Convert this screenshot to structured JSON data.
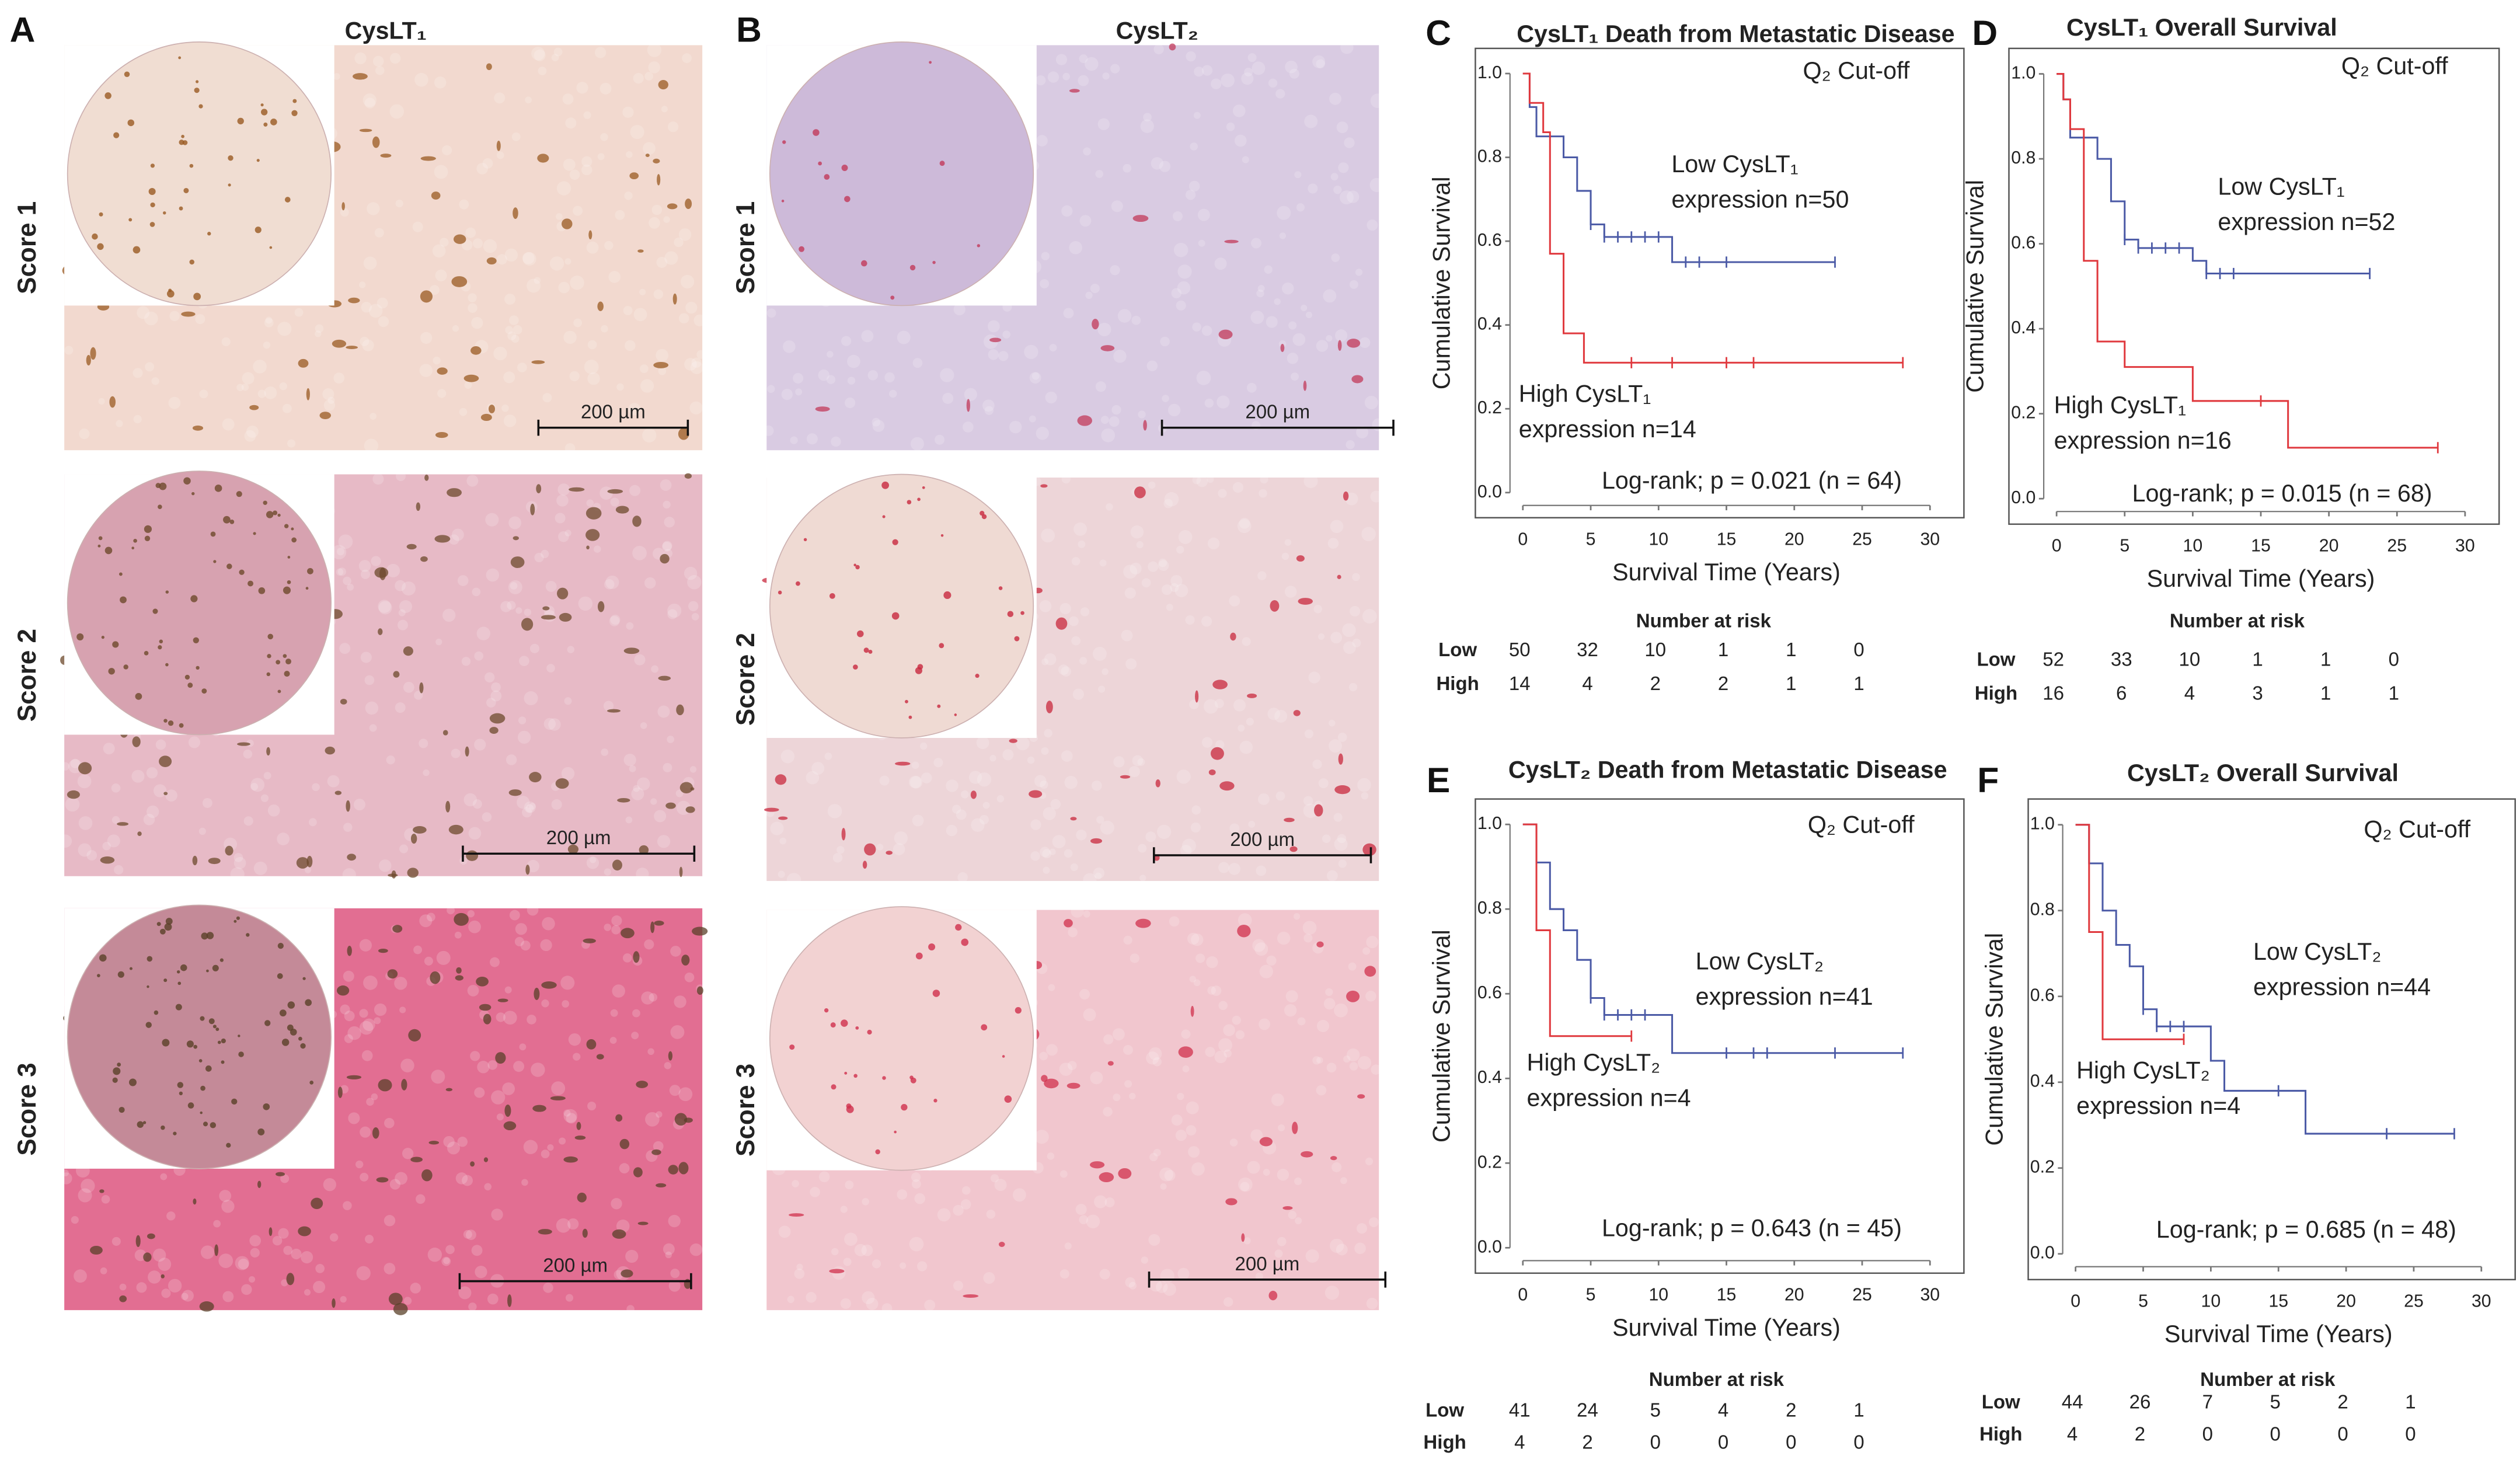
{
  "panels": {
    "A": {
      "label": "A",
      "title": "CysLT₁",
      "rows": [
        "Score 1",
        "Score 2",
        "Score 3"
      ],
      "scale_bar": "200 µm"
    },
    "B": {
      "label": "B",
      "title": "CysLT₂",
      "rows": [
        "Score 1",
        "Score 2",
        "Score 3"
      ],
      "scale_bar": "200 µm"
    }
  },
  "chart_data": [
    {
      "type": "line",
      "step": true,
      "panel_label": "C",
      "title": "CysLT₁ Death from Metastatic Disease",
      "xlabel": "Survival Time (Years)",
      "ylabel": "Cumulative Survival",
      "xlim": [
        -3.5,
        32.5
      ],
      "ylim": [
        -0.06,
        1.06
      ],
      "xticks": [
        0,
        5,
        10,
        15,
        20,
        25,
        30
      ],
      "yticks": [
        {
          "value": 0,
          "label": "0.0"
        },
        0.2,
        0.4,
        0.6,
        0.8,
        {
          "value": 1,
          "label": "1.0"
        }
      ],
      "annotations": {
        "cutoff": "Q₂ Cut-off",
        "low": [
          "Low CysLT₁",
          "expression n=50"
        ],
        "high": [
          "High CysLT₁",
          "expression n=14"
        ],
        "logrank": "Log-rank; p = 0.021 (n = 64)"
      },
      "risk_title": "Number at risk",
      "series": [
        {
          "name": "Low",
          "color": "#4b5aa6",
          "x": [
            0,
            0.5,
            1,
            3,
            4,
            5,
            6,
            11,
            23
          ],
          "values": [
            1,
            0.92,
            0.85,
            0.8,
            0.72,
            0.64,
            0.61,
            0.55,
            0.55
          ],
          "censored": {
            "x": [
              5,
              6,
              7,
              8,
              9,
              10,
              12,
              13,
              15,
              23
            ],
            "values": [
              0.64,
              0.61,
              0.61,
              0.61,
              0.61,
              0.61,
              0.55,
              0.55,
              0.55,
              0.55
            ]
          },
          "at_risk": [
            50,
            32,
            10,
            1,
            1,
            0
          ]
        },
        {
          "name": "High",
          "color": "#e0393e",
          "x": [
            0,
            0.5,
            1.5,
            2,
            3,
            4.5,
            28
          ],
          "values": [
            1,
            0.93,
            0.86,
            0.57,
            0.38,
            0.31,
            0.31
          ],
          "censored": {
            "x": [
              8,
              11,
              15,
              17,
              28
            ],
            "values": [
              0.31,
              0.31,
              0.31,
              0.31,
              0.31
            ]
          },
          "at_risk": [
            14,
            4,
            2,
            2,
            1,
            1
          ]
        }
      ]
    },
    {
      "type": "line",
      "step": true,
      "panel_label": "D",
      "title": "CysLT₁ Overall Survival",
      "xlabel": "Survival Time (Years)",
      "ylabel": "Cumulative Survival",
      "xlim": [
        -3.5,
        32.5
      ],
      "ylim": [
        -0.06,
        1.06
      ],
      "xticks": [
        0,
        5,
        10,
        15,
        20,
        25,
        30
      ],
      "yticks": [
        {
          "value": 0,
          "label": "0.0"
        },
        0.2,
        0.4,
        0.6,
        0.8,
        {
          "value": 1,
          "label": "1.0"
        }
      ],
      "annotations": {
        "cutoff": "Q₂ Cut-off",
        "low": [
          "Low CysLT₁",
          "expression n=52"
        ],
        "high": [
          "High CysLT₁",
          "expression n=16"
        ],
        "logrank": "Log-rank; p = 0.015 (n = 68)"
      },
      "risk_title": "Number at risk",
      "series": [
        {
          "name": "Low",
          "color": "#4b5aa6",
          "x": [
            0,
            0.5,
            1,
            3,
            4,
            5,
            6,
            10,
            11,
            23
          ],
          "values": [
            1,
            0.94,
            0.85,
            0.8,
            0.7,
            0.61,
            0.59,
            0.56,
            0.53,
            0.53
          ],
          "censored": {
            "x": [
              5,
              6,
              7,
              8,
              9,
              11,
              12,
              13,
              23
            ],
            "values": [
              0.61,
              0.59,
              0.59,
              0.59,
              0.59,
              0.53,
              0.53,
              0.53,
              0.53
            ]
          },
          "at_risk": [
            52,
            33,
            10,
            1,
            1,
            0
          ]
        },
        {
          "name": "High",
          "color": "#e0393e",
          "x": [
            0,
            0.5,
            1,
            2,
            3,
            5,
            10,
            17,
            28
          ],
          "values": [
            1,
            0.94,
            0.87,
            0.56,
            0.37,
            0.31,
            0.23,
            0.12,
            0.12
          ],
          "censored": {
            "x": [
              15,
              28
            ],
            "values": [
              0.23,
              0.12
            ]
          },
          "at_risk": [
            16,
            6,
            4,
            3,
            1,
            1
          ]
        }
      ]
    },
    {
      "type": "line",
      "step": true,
      "panel_label": "E",
      "title": "CysLT₂ Death from Metastatic Disease",
      "xlabel": "Survival Time (Years)",
      "ylabel": "Cumulative Survival",
      "xlim": [
        -3.5,
        32.5
      ],
      "ylim": [
        -0.06,
        1.06
      ],
      "xticks": [
        0,
        5,
        10,
        15,
        20,
        25,
        30
      ],
      "yticks": [
        {
          "value": 0,
          "label": "0.0"
        },
        0.2,
        0.4,
        0.6,
        0.8,
        {
          "value": 1,
          "label": "1.0"
        }
      ],
      "annotations": {
        "cutoff": "Q₂ Cut-off",
        "low": [
          "Low CysLT₂",
          "expression n=41"
        ],
        "high": [
          "High CysLT₂",
          "expression n=4"
        ],
        "logrank": "Log-rank; p = 0.643 (n = 45)"
      },
      "risk_title": "Number at risk",
      "series": [
        {
          "name": "Low",
          "color": "#4b5aa6",
          "x": [
            0,
            1,
            2,
            3,
            4,
            5,
            6,
            11,
            28
          ],
          "values": [
            1,
            0.91,
            0.8,
            0.75,
            0.68,
            0.59,
            0.55,
            0.46,
            0.46
          ],
          "censored": {
            "x": [
              5,
              6,
              7,
              8,
              9,
              15,
              17,
              18,
              23,
              28
            ],
            "values": [
              0.59,
              0.55,
              0.55,
              0.55,
              0.55,
              0.46,
              0.46,
              0.46,
              0.46,
              0.46
            ]
          },
          "at_risk": [
            41,
            24,
            5,
            4,
            2,
            1
          ]
        },
        {
          "name": "High",
          "color": "#e0393e",
          "x": [
            0,
            1,
            2,
            8
          ],
          "values": [
            1,
            0.75,
            0.5,
            0.5
          ],
          "censored": {
            "x": [
              8
            ],
            "values": [
              0.5
            ]
          },
          "at_risk": [
            4,
            2,
            0,
            0,
            0,
            0
          ]
        }
      ]
    },
    {
      "type": "line",
      "step": true,
      "panel_label": "F",
      "title": "CysLT₂ Overall Survival",
      "xlabel": "Survival Time (Years)",
      "ylabel": "Cumulative Survival",
      "xlim": [
        -3.5,
        32.5
      ],
      "ylim": [
        -0.06,
        1.06
      ],
      "xticks": [
        0,
        5,
        10,
        15,
        20,
        25,
        30
      ],
      "yticks": [
        {
          "value": 0,
          "label": "0.0"
        },
        0.2,
        0.4,
        0.6,
        0.8,
        {
          "value": 1,
          "label": "1.0"
        }
      ],
      "annotations": {
        "cutoff": "Q₂ Cut-off",
        "low": [
          "Low CysLT₂",
          "expression n=44"
        ],
        "high": [
          "High CysLT₂",
          "expression n=4"
        ],
        "logrank": "Log-rank; p = 0.685 (n = 48)"
      },
      "risk_title": "Number at risk",
      "series": [
        {
          "name": "Low",
          "color": "#4b5aa6",
          "x": [
            0,
            1,
            2,
            3,
            4,
            5,
            6,
            10,
            11,
            17,
            28
          ],
          "values": [
            1,
            0.91,
            0.8,
            0.72,
            0.67,
            0.57,
            0.53,
            0.45,
            0.38,
            0.28,
            0.28
          ],
          "censored": {
            "x": [
              5,
              6,
              7,
              8,
              15,
              23,
              28
            ],
            "values": [
              0.57,
              0.53,
              0.53,
              0.53,
              0.38,
              0.28,
              0.28
            ]
          },
          "at_risk": [
            44,
            26,
            7,
            5,
            2,
            1
          ]
        },
        {
          "name": "High",
          "color": "#e0393e",
          "x": [
            0,
            1,
            2,
            8
          ],
          "values": [
            1,
            0.75,
            0.5,
            0.5
          ],
          "censored": {
            "x": [
              8
            ],
            "values": [
              0.5
            ]
          },
          "at_risk": [
            4,
            2,
            0,
            0,
            0,
            0
          ]
        }
      ]
    }
  ]
}
